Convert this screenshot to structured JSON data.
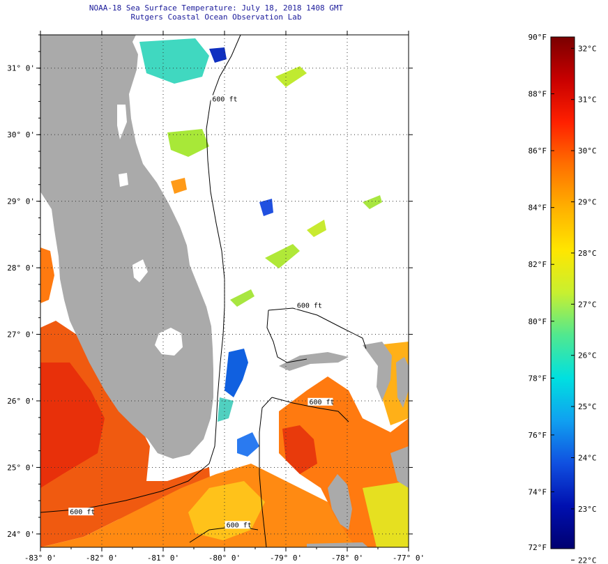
{
  "header": {
    "title": "NOAA-18 Sea Surface Temperature:  July 18, 2018 1408 GMT",
    "subtitle": "Rutgers Coastal Ocean Observation Lab"
  },
  "map": {
    "lon_range": [
      -83,
      -77
    ],
    "lat_range": [
      23.8,
      31.5
    ],
    "lon_ticks": [
      {
        "value": -83,
        "label": "-83° 0'"
      },
      {
        "value": -82,
        "label": "-82° 0'"
      },
      {
        "value": -81,
        "label": "-81° 0'"
      },
      {
        "value": -80,
        "label": "-80° 0'"
      },
      {
        "value": -79,
        "label": "-79° 0'"
      },
      {
        "value": -78,
        "label": "-78° 0'"
      },
      {
        "value": -77,
        "label": "-77° 0'"
      }
    ],
    "lat_ticks": [
      {
        "value": 31,
        "label": "31° 0'"
      },
      {
        "value": 30,
        "label": "30° 0'"
      },
      {
        "value": 29,
        "label": "29° 0'"
      },
      {
        "value": 28,
        "label": "28° 0'"
      },
      {
        "value": 27,
        "label": "27° 0'"
      },
      {
        "value": 26,
        "label": "26° 0'"
      },
      {
        "value": 25,
        "label": "25° 0'"
      },
      {
        "value": 24,
        "label": "24° 0'"
      }
    ],
    "contour_labels": [
      {
        "text": "600 ft",
        "lon": -78.82,
        "lat": 27.4
      },
      {
        "text": "600 ft",
        "lon": -78.62,
        "lat": 25.95
      },
      {
        "text": "600 ft",
        "lon": -82.52,
        "lat": 24.3
      },
      {
        "text": "600 ft",
        "lon": -79.97,
        "lat": 24.1
      },
      {
        "text": "600 ft",
        "lon": -80.2,
        "lat": 30.5
      }
    ],
    "colors": {
      "land": "#aaaaaa",
      "grid": "#333333",
      "contour": "#000000",
      "title": "#1a1a9a"
    }
  },
  "colorbar": {
    "f_labels": [
      "90°F",
      "88°F",
      "86°F",
      "84°F",
      "82°F",
      "80°F",
      "78°F",
      "76°F",
      "74°F",
      "72°F"
    ],
    "f_values": [
      90,
      88,
      86,
      84,
      82,
      80,
      78,
      76,
      74,
      72
    ],
    "c_labels": [
      "32°C",
      "31°C",
      "30°C",
      "29°C",
      "28°C",
      "27°C",
      "26°C",
      "25°C",
      "24°C",
      "23°C",
      "22°C"
    ],
    "c_values": [
      32,
      31,
      30,
      29,
      28,
      27,
      26,
      25,
      24,
      23,
      22
    ],
    "range_f": [
      72,
      90
    ],
    "scale": [
      "#7a0000",
      "#c80000",
      "#ff2000",
      "#ff7000",
      "#ffb000",
      "#ffe600",
      "#c8f030",
      "#50e890",
      "#00e0e0",
      "#10a0f0",
      "#1050e0",
      "#0010b0",
      "#000070"
    ]
  }
}
